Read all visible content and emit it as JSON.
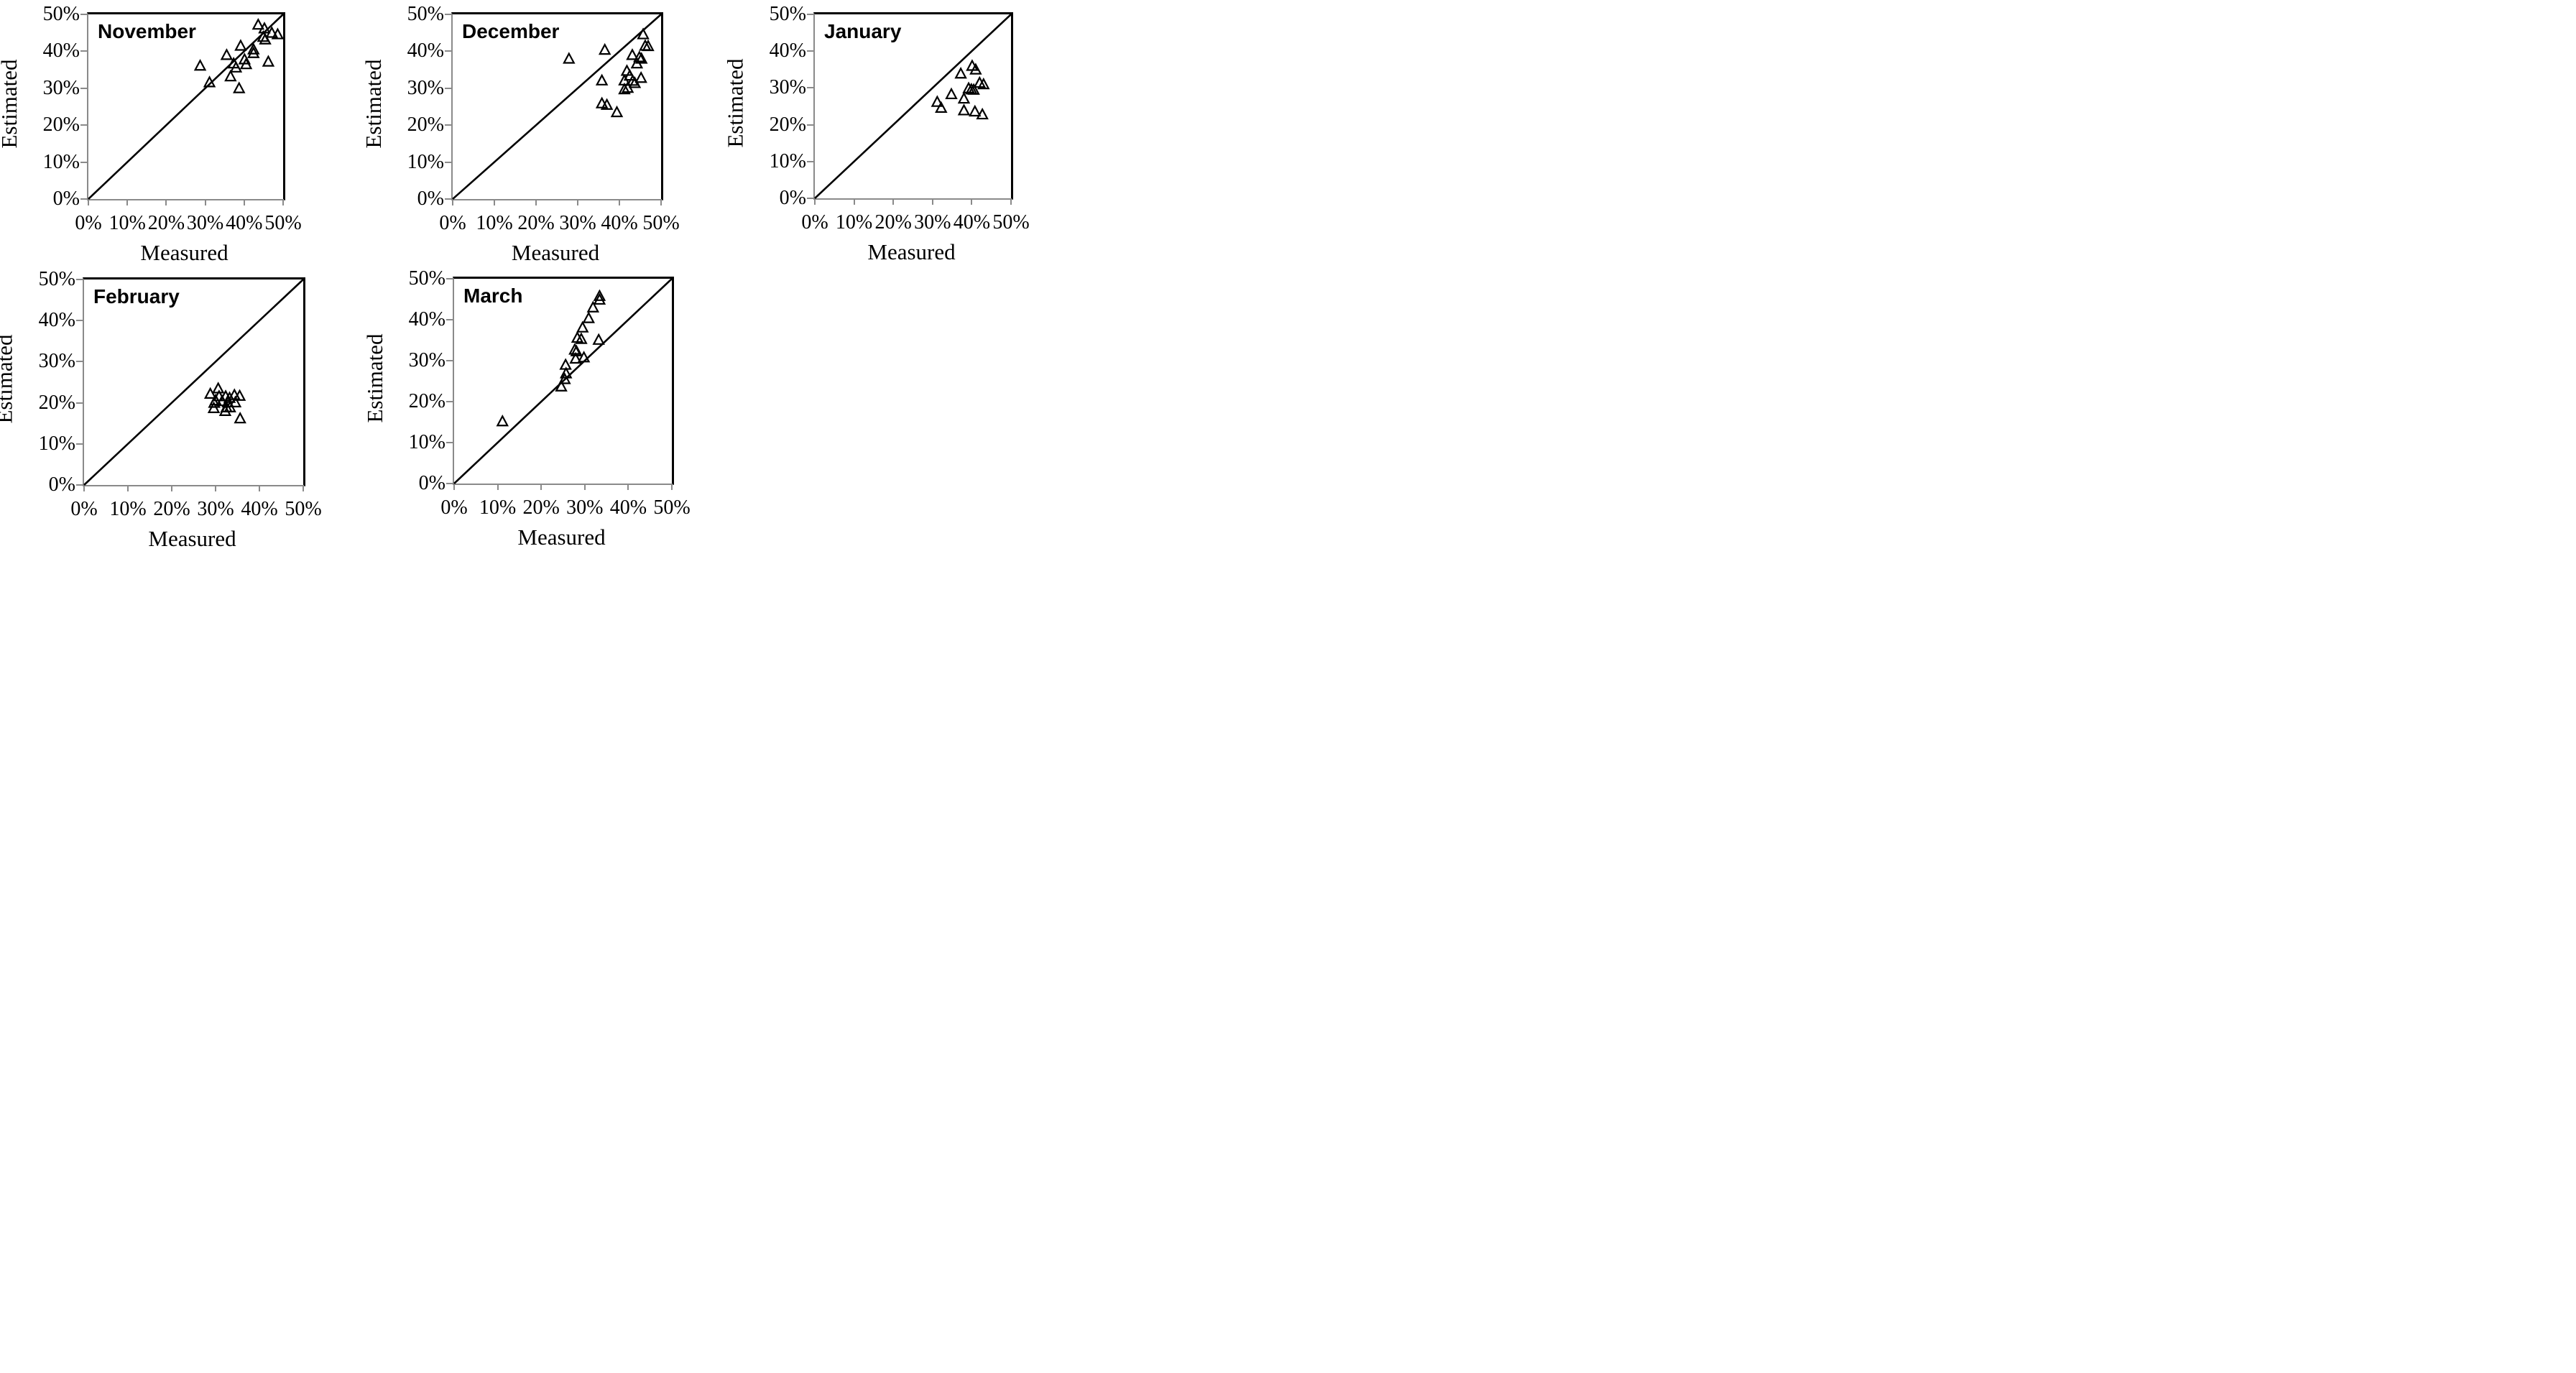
{
  "figure": {
    "background": "#ffffff",
    "marker_glyph": "open-triangle",
    "layout_note": "5 scatter panels: 3 top row, 2 bottom row"
  },
  "colors": {
    "axis_gray": "#8a8a8a",
    "line_black": "#000000",
    "marker_black": "#000000",
    "background": "#ffffff"
  },
  "axes_shared": {
    "x_tick_labels": [
      "0%",
      "10%",
      "20%",
      "30%",
      "40%",
      "50%"
    ],
    "y_tick_labels": [
      "0%",
      "10%",
      "20%",
      "30%",
      "40%",
      "50%"
    ],
    "tick_values": [
      0,
      10,
      20,
      30,
      40,
      50
    ]
  },
  "chart_data": [
    {
      "type": "scatter",
      "title": "November",
      "xlabel": "Measured",
      "ylabel": "Estimated",
      "xlim": [
        0,
        50
      ],
      "ylim": [
        0,
        50
      ],
      "grid": false,
      "identity_line": true,
      "marker": "open-triangle",
      "points": [
        [
          28.7,
          36.0
        ],
        [
          31.1,
          31.5
        ],
        [
          35.5,
          38.9
        ],
        [
          36.5,
          33.1
        ],
        [
          37.3,
          36.6
        ],
        [
          37.9,
          35.5
        ],
        [
          38.7,
          29.9
        ],
        [
          39.1,
          41.4
        ],
        [
          40.1,
          37.7
        ],
        [
          40.5,
          36.4
        ],
        [
          42.4,
          40.4
        ],
        [
          42.4,
          39.4
        ],
        [
          43.6,
          47.1
        ],
        [
          44.9,
          43.8
        ],
        [
          45.2,
          46.1
        ],
        [
          45.4,
          43.1
        ],
        [
          46.2,
          37.1
        ],
        [
          47.1,
          44.9
        ],
        [
          48.6,
          44.5
        ]
      ]
    },
    {
      "type": "scatter",
      "title": "December",
      "xlabel": "Measured",
      "ylabel": "Estimated",
      "xlim": [
        0,
        50
      ],
      "ylim": [
        0,
        50
      ],
      "grid": false,
      "identity_line": true,
      "marker": "open-triangle",
      "points": [
        [
          27.9,
          37.9
        ],
        [
          35.8,
          32.0
        ],
        [
          35.8,
          25.8
        ],
        [
          36.5,
          40.3
        ],
        [
          37.0,
          25.4
        ],
        [
          39.4,
          23.4
        ],
        [
          41.2,
          32.0
        ],
        [
          41.2,
          29.6
        ],
        [
          41.8,
          34.6
        ],
        [
          42.0,
          30.0
        ],
        [
          42.5,
          33.3
        ],
        [
          43.1,
          38.9
        ],
        [
          43.2,
          31.9
        ],
        [
          43.7,
          31.3
        ],
        [
          44.2,
          36.6
        ],
        [
          44.8,
          38.3
        ],
        [
          45.2,
          32.7
        ],
        [
          45.3,
          37.9
        ],
        [
          45.7,
          44.5
        ],
        [
          46.2,
          41.4
        ],
        [
          46.9,
          41.3
        ]
      ]
    },
    {
      "type": "scatter",
      "title": "January",
      "xlabel": "Measured",
      "ylabel": "Estimated",
      "xlim": [
        0,
        50
      ],
      "ylim": [
        0,
        50
      ],
      "grid": false,
      "identity_line": true,
      "marker": "open-triangle",
      "points": [
        [
          31.2,
          26.1
        ],
        [
          32.2,
          24.5
        ],
        [
          34.8,
          28.2
        ],
        [
          37.2,
          33.8
        ],
        [
          38.0,
          27.0
        ],
        [
          38.0,
          23.8
        ],
        [
          39.2,
          29.8
        ],
        [
          39.9,
          29.5
        ],
        [
          40.1,
          35.9
        ],
        [
          40.5,
          29.4
        ],
        [
          40.8,
          23.5
        ],
        [
          41.0,
          34.9
        ],
        [
          42.0,
          31.3
        ],
        [
          42.7,
          22.7
        ],
        [
          43.0,
          30.9
        ]
      ]
    },
    {
      "type": "scatter",
      "title": "February",
      "xlabel": "Measured",
      "ylabel": "Estimated",
      "xlim": [
        0,
        50
      ],
      "ylim": [
        0,
        50
      ],
      "grid": false,
      "identity_line": true,
      "marker": "open-triangle",
      "points": [
        [
          28.8,
          22.1
        ],
        [
          29.6,
          18.6
        ],
        [
          29.7,
          19.9
        ],
        [
          30.0,
          20.5
        ],
        [
          30.6,
          23.4
        ],
        [
          30.8,
          21.5
        ],
        [
          31.5,
          20.3
        ],
        [
          32.2,
          17.9
        ],
        [
          32.3,
          21.5
        ],
        [
          32.5,
          18.8
        ],
        [
          32.8,
          20.0
        ],
        [
          33.2,
          21.1
        ],
        [
          33.3,
          18.8
        ],
        [
          34.3,
          21.8
        ],
        [
          34.5,
          20.0
        ],
        [
          35.5,
          21.6
        ],
        [
          35.6,
          16.1
        ]
      ]
    },
    {
      "type": "scatter",
      "title": "March",
      "xlabel": "Measured",
      "ylabel": "Estimated",
      "xlim": [
        0,
        50
      ],
      "ylim": [
        0,
        50
      ],
      "grid": false,
      "identity_line": true,
      "marker": "open-triangle",
      "points": [
        [
          11.1,
          15.1
        ],
        [
          24.6,
          23.6
        ],
        [
          25.4,
          25.4
        ],
        [
          25.6,
          28.9
        ],
        [
          25.7,
          26.8
        ],
        [
          27.7,
          32.6
        ],
        [
          27.9,
          30.4
        ],
        [
          28.1,
          32.2
        ],
        [
          28.3,
          35.5
        ],
        [
          29.2,
          35.2
        ],
        [
          29.5,
          38.0
        ],
        [
          29.8,
          30.7
        ],
        [
          30.9,
          40.3
        ],
        [
          31.9,
          42.9
        ],
        [
          33.2,
          35.0
        ],
        [
          33.4,
          44.8
        ],
        [
          33.4,
          45.7
        ]
      ]
    }
  ]
}
